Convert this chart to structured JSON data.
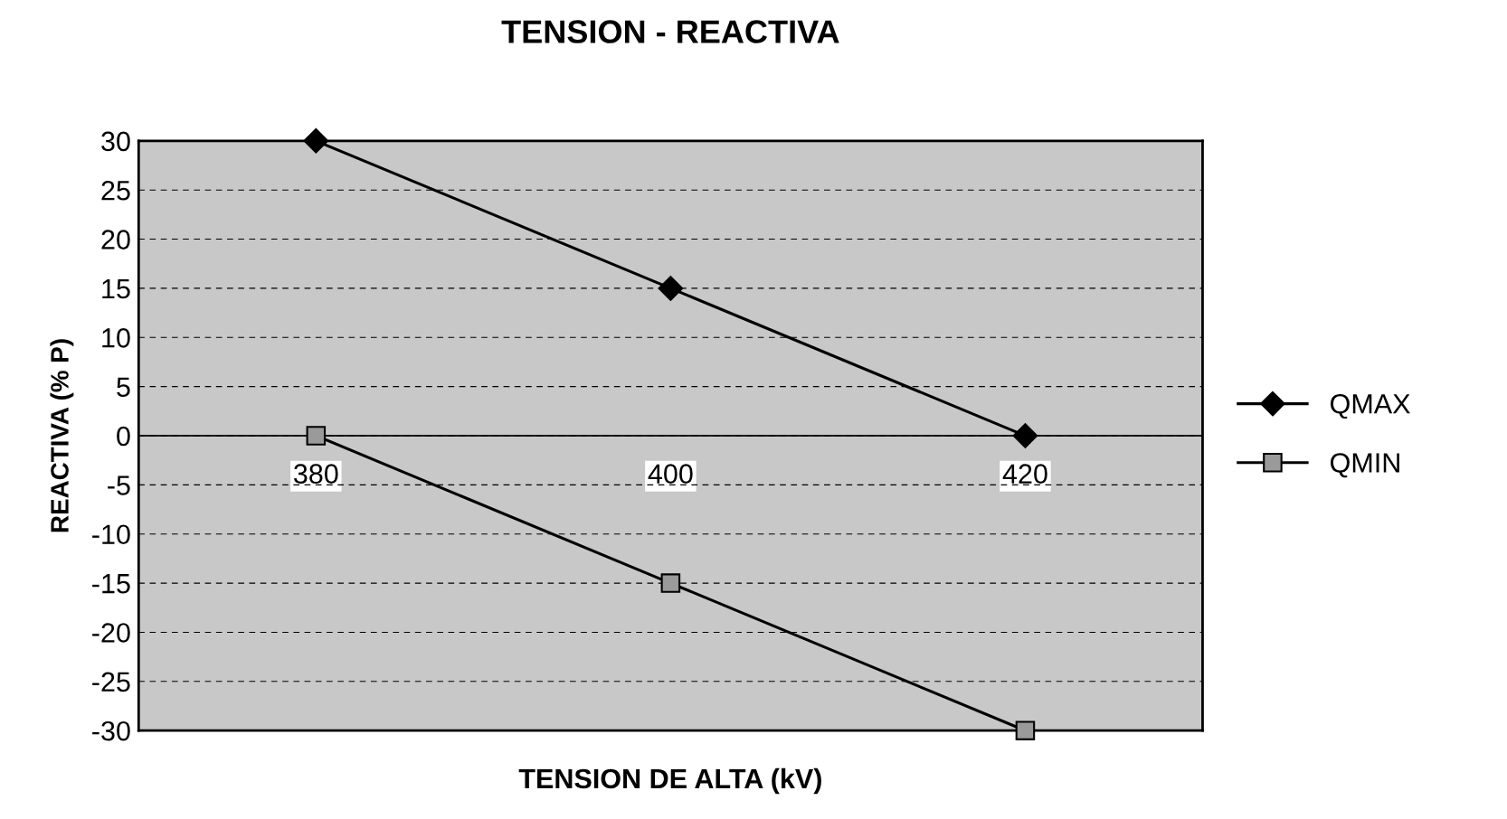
{
  "chart_data": {
    "type": "line",
    "title": "TENSION - REACTIVA",
    "xlabel": "TENSION DE ALTA (kV)",
    "ylabel": "REACTIVA (% P)",
    "categories": [
      "380",
      "400",
      "420"
    ],
    "series": [
      {
        "name": "QMAX",
        "color": "#000000",
        "marker": "diamond",
        "values": [
          30,
          15,
          0
        ]
      },
      {
        "name": "QMIN",
        "color": "#000000",
        "marker": "square",
        "values": [
          0,
          -15,
          -30
        ]
      }
    ],
    "ylim": [
      -30,
      30
    ],
    "yticks": [
      -30,
      -25,
      -20,
      -15,
      -10,
      -5,
      0,
      5,
      10,
      15,
      20,
      25,
      30
    ],
    "ref_lines": [
      {
        "axis": "y",
        "value": 0,
        "color": "#000000"
      }
    ],
    "grid": "y",
    "legend": "right",
    "line_style": "solid"
  }
}
